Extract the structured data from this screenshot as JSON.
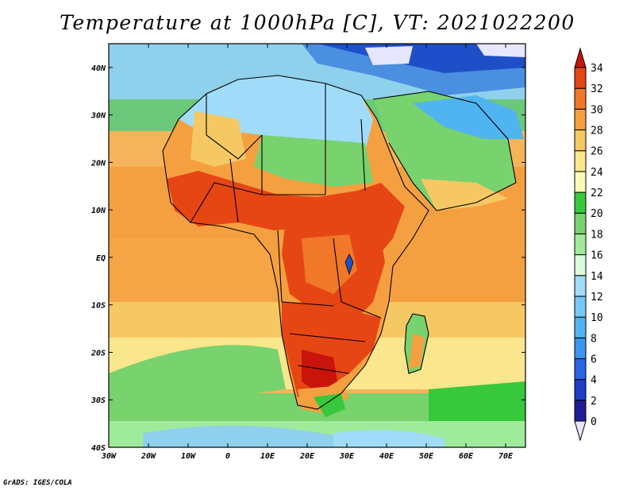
{
  "title": "Temperature at 1000hPa [C], VT: 2021022200",
  "footer": "GrADS: IGES/COLA",
  "map": {
    "region": "Africa",
    "variable": "Temperature at 1000hPa",
    "units": "C",
    "lon_range": [
      -30,
      75
    ],
    "lat_range": [
      -40,
      45
    ],
    "lon_ticks": [
      "30W",
      "20W",
      "10W",
      "0",
      "10E",
      "20E",
      "30E",
      "40E",
      "50E",
      "60E",
      "70E"
    ],
    "lat_ticks": [
      "40S",
      "30S",
      "20S",
      "10S",
      "EQ",
      "10N",
      "20N",
      "30N",
      "40N"
    ]
  },
  "colorbar": {
    "levels": [
      "0",
      "2",
      "4",
      "6",
      "8",
      "10",
      "12",
      "14",
      "16",
      "18",
      "20",
      "22",
      "24",
      "26",
      "28",
      "30",
      "32",
      "34"
    ],
    "colors": [
      "#e6e6ff",
      "#1e1e96",
      "#1e3cc8",
      "#2864e6",
      "#3c96f0",
      "#50b4f0",
      "#78c8f5",
      "#a0dcfa",
      "#dcfadc",
      "#a0eb9b",
      "#78d26e",
      "#37c83c",
      "#fafab4",
      "#fae68c",
      "#f5c864",
      "#f5a040",
      "#f07828",
      "#e64614",
      "#c8140a"
    ]
  }
}
